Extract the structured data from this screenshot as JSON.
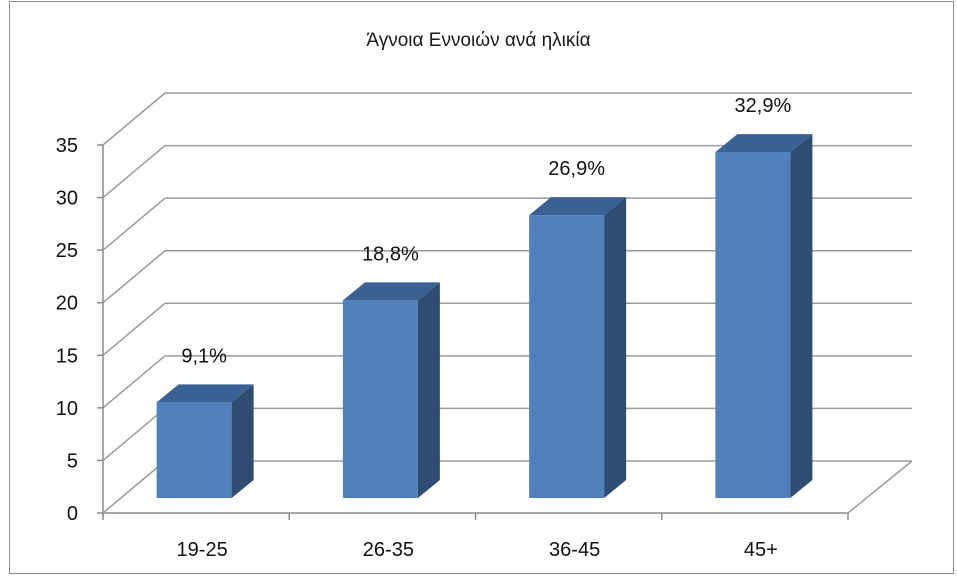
{
  "chart_data": {
    "type": "bar",
    "title": "Άγνοια Εννοιών ανά ηλικία",
    "xlabel": "",
    "ylabel": "",
    "categories": [
      "19-25",
      "26-35",
      "36-45",
      "45+"
    ],
    "series": [
      {
        "values": [
          9.1,
          18.8,
          26.9,
          32.9
        ]
      }
    ],
    "data_labels": [
      "9,1%",
      "18,8%",
      "26,9%",
      "32,9%"
    ],
    "ylim": [
      0,
      35
    ],
    "yticks": [
      "0",
      "5",
      "10",
      "15",
      "20",
      "25",
      "30",
      "35"
    ],
    "grid": true,
    "legend": "none",
    "style": "3d-column"
  },
  "colors": {
    "bar_front": "#4f81bd",
    "bar_side": "#2f4d73",
    "bar_top": "#3a6193",
    "grid": "#9a9a9a"
  }
}
